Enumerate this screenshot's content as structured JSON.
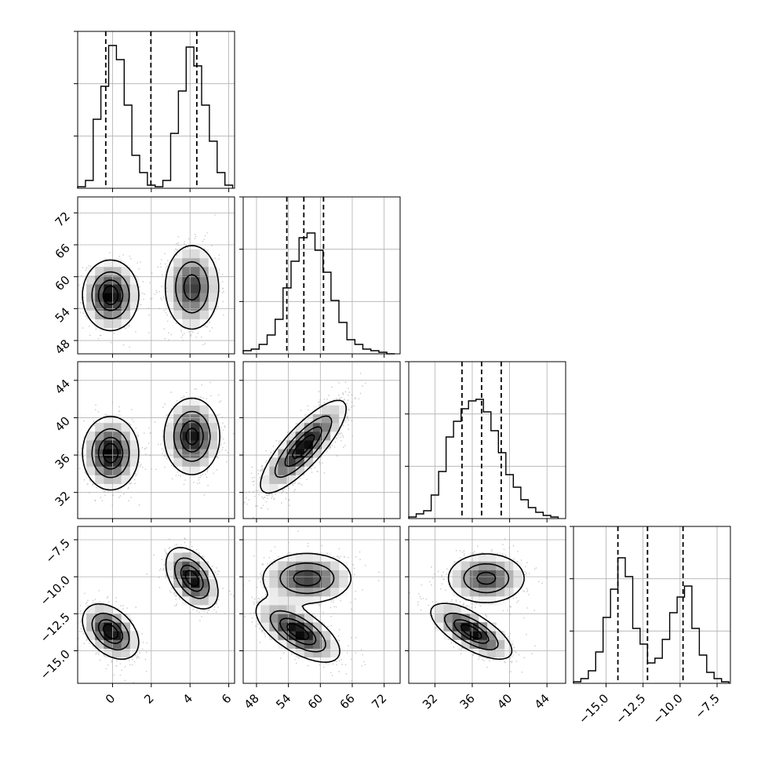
{
  "chart_data": {
    "type": "corner",
    "title": "",
    "params": [
      {
        "ylim": null,
        "lim": [
          -1.8,
          6.3
        ],
        "ticks": [
          0,
          2,
          4,
          6
        ],
        "tick_labels": [
          "0",
          "2",
          "4",
          "6"
        ],
        "quantiles": [
          -0.35,
          1.98,
          4.35
        ],
        "hist_max": 100,
        "hist_bins": [
          -1.8,
          -1.4,
          -1.0,
          -0.6,
          -0.2,
          0.2,
          0.6,
          1.0,
          1.4,
          1.8,
          2.2,
          2.6,
          3.0,
          3.4,
          3.8,
          4.2,
          4.6,
          5.0,
          5.4,
          5.8,
          6.2
        ],
        "hist_counts": [
          1,
          5,
          44,
          65,
          91,
          82,
          53,
          21,
          10,
          2,
          1,
          5,
          35,
          62,
          90,
          78,
          53,
          30,
          10,
          2
        ]
      },
      {
        "lim": [
          45.5,
          75.0
        ],
        "ticks": [
          48,
          54,
          60,
          66,
          72
        ],
        "tick_labels": [
          "48",
          "54",
          "60",
          "66",
          "72"
        ],
        "quantiles": [
          53.7,
          56.9,
          60.6
        ],
        "hist_max": 100,
        "hist_bins": [
          45.5,
          47.0,
          48.5,
          50.0,
          51.5,
          53.0,
          54.5,
          56.0,
          57.5,
          59.0,
          60.5,
          62.0,
          63.5,
          65.0,
          66.5,
          68.0,
          69.5,
          71.0,
          72.5,
          74.0
        ],
        "hist_counts": [
          2,
          3,
          6,
          12,
          22,
          42,
          59,
          74,
          77,
          66,
          52,
          34,
          20,
          9,
          6,
          3,
          2,
          1,
          0
        ]
      },
      {
        "lim": [
          29.2,
          46.0
        ],
        "ticks": [
          32,
          36,
          40,
          44
        ],
        "tick_labels": [
          "32",
          "36",
          "40",
          "44"
        ],
        "quantiles": [
          34.9,
          37.0,
          39.1
        ],
        "hist_max": 100,
        "hist_bins": [
          29.2,
          30.0,
          30.8,
          31.6,
          32.4,
          33.2,
          34.0,
          34.8,
          35.6,
          36.4,
          37.2,
          38.0,
          38.8,
          39.6,
          40.4,
          41.2,
          42.0,
          42.8,
          43.6,
          44.4,
          45.2
        ],
        "hist_counts": [
          1,
          3,
          5,
          15,
          30,
          52,
          62,
          70,
          75,
          76,
          68,
          56,
          42,
          28,
          20,
          12,
          7,
          4,
          2,
          1
        ]
      },
      {
        "lim": [
          -17.2,
          -6.6
        ],
        "ticks": [
          -15.0,
          -12.5,
          -10.0,
          -7.5
        ],
        "tick_labels": [
          "−15.0",
          "−12.5",
          "−10.0",
          "−7.5"
        ],
        "quantiles": [
          -14.2,
          -12.2,
          -9.8
        ],
        "hist_max": 100,
        "hist_bins": [
          -17.2,
          -16.7,
          -16.2,
          -15.7,
          -15.2,
          -14.7,
          -14.2,
          -13.7,
          -13.2,
          -12.7,
          -12.2,
          -11.7,
          -11.2,
          -10.7,
          -10.2,
          -9.7,
          -9.2,
          -8.7,
          -8.2,
          -7.7,
          -7.2,
          -6.7
        ],
        "hist_counts": [
          1,
          3,
          8,
          20,
          42,
          60,
          80,
          68,
          35,
          25,
          13,
          16,
          28,
          45,
          55,
          62,
          35,
          18,
          7,
          3,
          1
        ]
      }
    ],
    "pairs": [
      {
        "row": 1,
        "col": 0,
        "modes": [
          {
            "cx": -0.1,
            "cy": 56.5,
            "sx": 0.7,
            "sy": 3.2,
            "rho": 0.0,
            "w": 0.5
          },
          {
            "cx": 4.1,
            "cy": 58.0,
            "sx": 0.7,
            "sy": 4.0,
            "rho": 0.0,
            "w": 0.5
          }
        ]
      },
      {
        "row": 2,
        "col": 0,
        "modes": [
          {
            "cx": -0.1,
            "cy": 36.2,
            "sx": 0.7,
            "sy": 1.9,
            "rho": 0.0,
            "w": 0.5
          },
          {
            "cx": 4.1,
            "cy": 38.0,
            "sx": 0.7,
            "sy": 2.0,
            "rho": 0.0,
            "w": 0.5
          }
        ]
      },
      {
        "row": 3,
        "col": 0,
        "modes": [
          {
            "cx": -0.1,
            "cy": -13.7,
            "sx": 0.7,
            "sy": 0.9,
            "rho": -0.4,
            "w": 0.5
          },
          {
            "cx": 4.1,
            "cy": -10.1,
            "sx": 0.65,
            "sy": 1.0,
            "rho": -0.45,
            "w": 0.5
          }
        ]
      },
      {
        "row": 2,
        "col": 1,
        "modes": [
          {
            "cx": 56.8,
            "cy": 36.9,
            "sx": 3.9,
            "sy": 2.4,
            "rho": 0.82,
            "w": 1.0
          }
        ]
      },
      {
        "row": 3,
        "col": 1,
        "modes": [
          {
            "cx": 57.5,
            "cy": -10.1,
            "sx": 4.2,
            "sy": 0.85,
            "rho": 0.0,
            "w": 0.5
          },
          {
            "cx": 55.8,
            "cy": -13.7,
            "sx": 3.8,
            "sy": 1.0,
            "rho": -0.65,
            "w": 0.5
          }
        ]
      },
      {
        "row": 3,
        "col": 2,
        "modes": [
          {
            "cx": 37.5,
            "cy": -10.1,
            "sx": 2.1,
            "sy": 0.85,
            "rho": 0.0,
            "w": 0.5
          },
          {
            "cx": 35.9,
            "cy": -13.7,
            "sx": 2.1,
            "sy": 0.9,
            "rho": -0.7,
            "w": 0.5
          }
        ]
      }
    ],
    "contour_levels": [
      0.118,
      0.393,
      0.675,
      0.865
    ],
    "grid": true
  }
}
